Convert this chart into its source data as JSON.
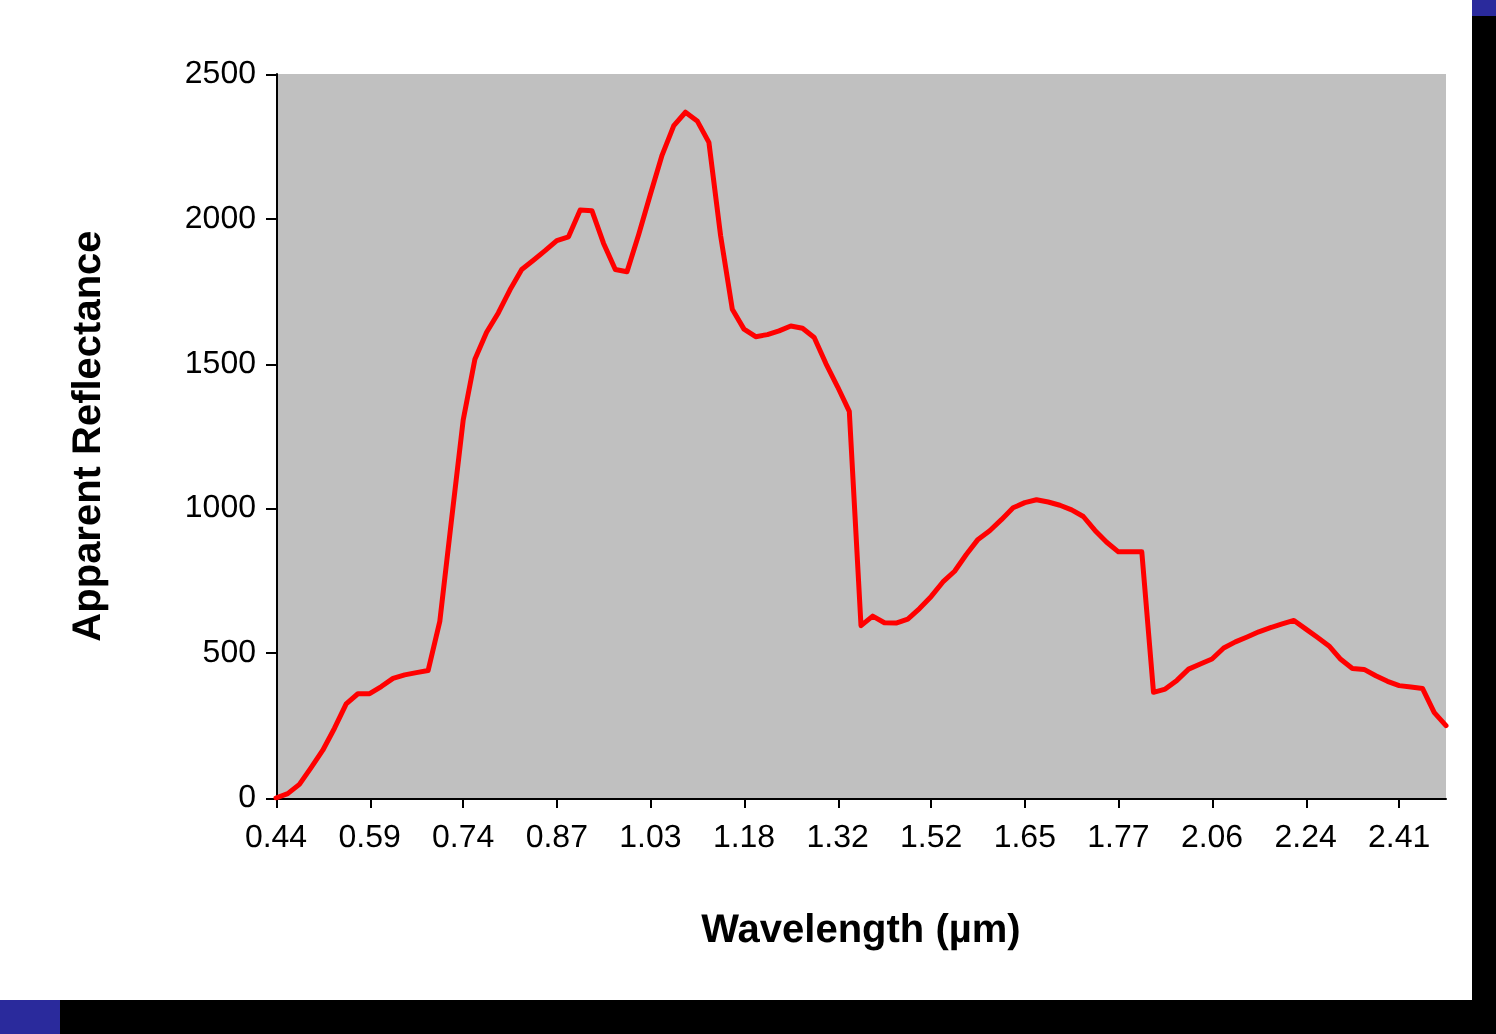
{
  "chart_data": {
    "type": "line",
    "xlabel": "Wavelength (µm)",
    "ylabel": "Apparent Reflectance",
    "categories": [
      "0.44",
      null,
      null,
      null,
      null,
      null,
      null,
      null,
      "0.59",
      null,
      null,
      null,
      null,
      null,
      null,
      null,
      "0.74",
      null,
      null,
      null,
      null,
      null,
      null,
      null,
      "0.87",
      null,
      null,
      null,
      null,
      null,
      null,
      null,
      "1.03",
      null,
      null,
      null,
      null,
      null,
      null,
      null,
      "1.18",
      null,
      null,
      null,
      null,
      null,
      null,
      null,
      "1.32",
      null,
      null,
      null,
      null,
      null,
      null,
      null,
      "1.52",
      null,
      null,
      null,
      null,
      null,
      null,
      null,
      "1.65",
      null,
      null,
      null,
      null,
      null,
      null,
      null,
      "1.77",
      null,
      null,
      null,
      null,
      null,
      null,
      null,
      "2.06",
      null,
      null,
      null,
      null,
      null,
      null,
      null,
      "2.24",
      null,
      null,
      null,
      null,
      null,
      null,
      null,
      "2.41",
      null,
      null,
      null,
      null
    ],
    "series": [
      {
        "color": "#ff0000",
        "values": [
          0,
          15,
          47,
          105,
          165,
          241,
          325,
          360,
          360,
          385,
          413,
          425,
          433,
          440,
          610,
          960,
          1305,
          1515,
          1608,
          1675,
          1755,
          1825,
          1857,
          1890,
          1925,
          1938,
          2030,
          2028,
          1915,
          1825,
          1817,
          1946,
          2085,
          2220,
          2322,
          2368,
          2338,
          2264,
          1942,
          1688,
          1619,
          1593,
          1600,
          1613,
          1630,
          1622,
          1590,
          1500,
          1420,
          1335,
          595,
          628,
          605,
          604,
          618,
          654,
          696,
          746,
          783,
          841,
          893,
          923,
          961,
          1002,
          1020,
          1030,
          1022,
          1011,
          995,
          972,
          924,
          883,
          850,
          850,
          850,
          365,
          376,
          406,
          445,
          463,
          480,
          518,
          539,
          556,
          574,
          588,
          601,
          613,
          584,
          555,
          525,
          479,
          447,
          444,
          422,
          403,
          388,
          383,
          378,
          295,
          250
        ]
      }
    ],
    "ylim": [
      0,
      2500
    ],
    "yticks": [
      0,
      500,
      1000,
      1500,
      2000,
      2500
    ]
  }
}
